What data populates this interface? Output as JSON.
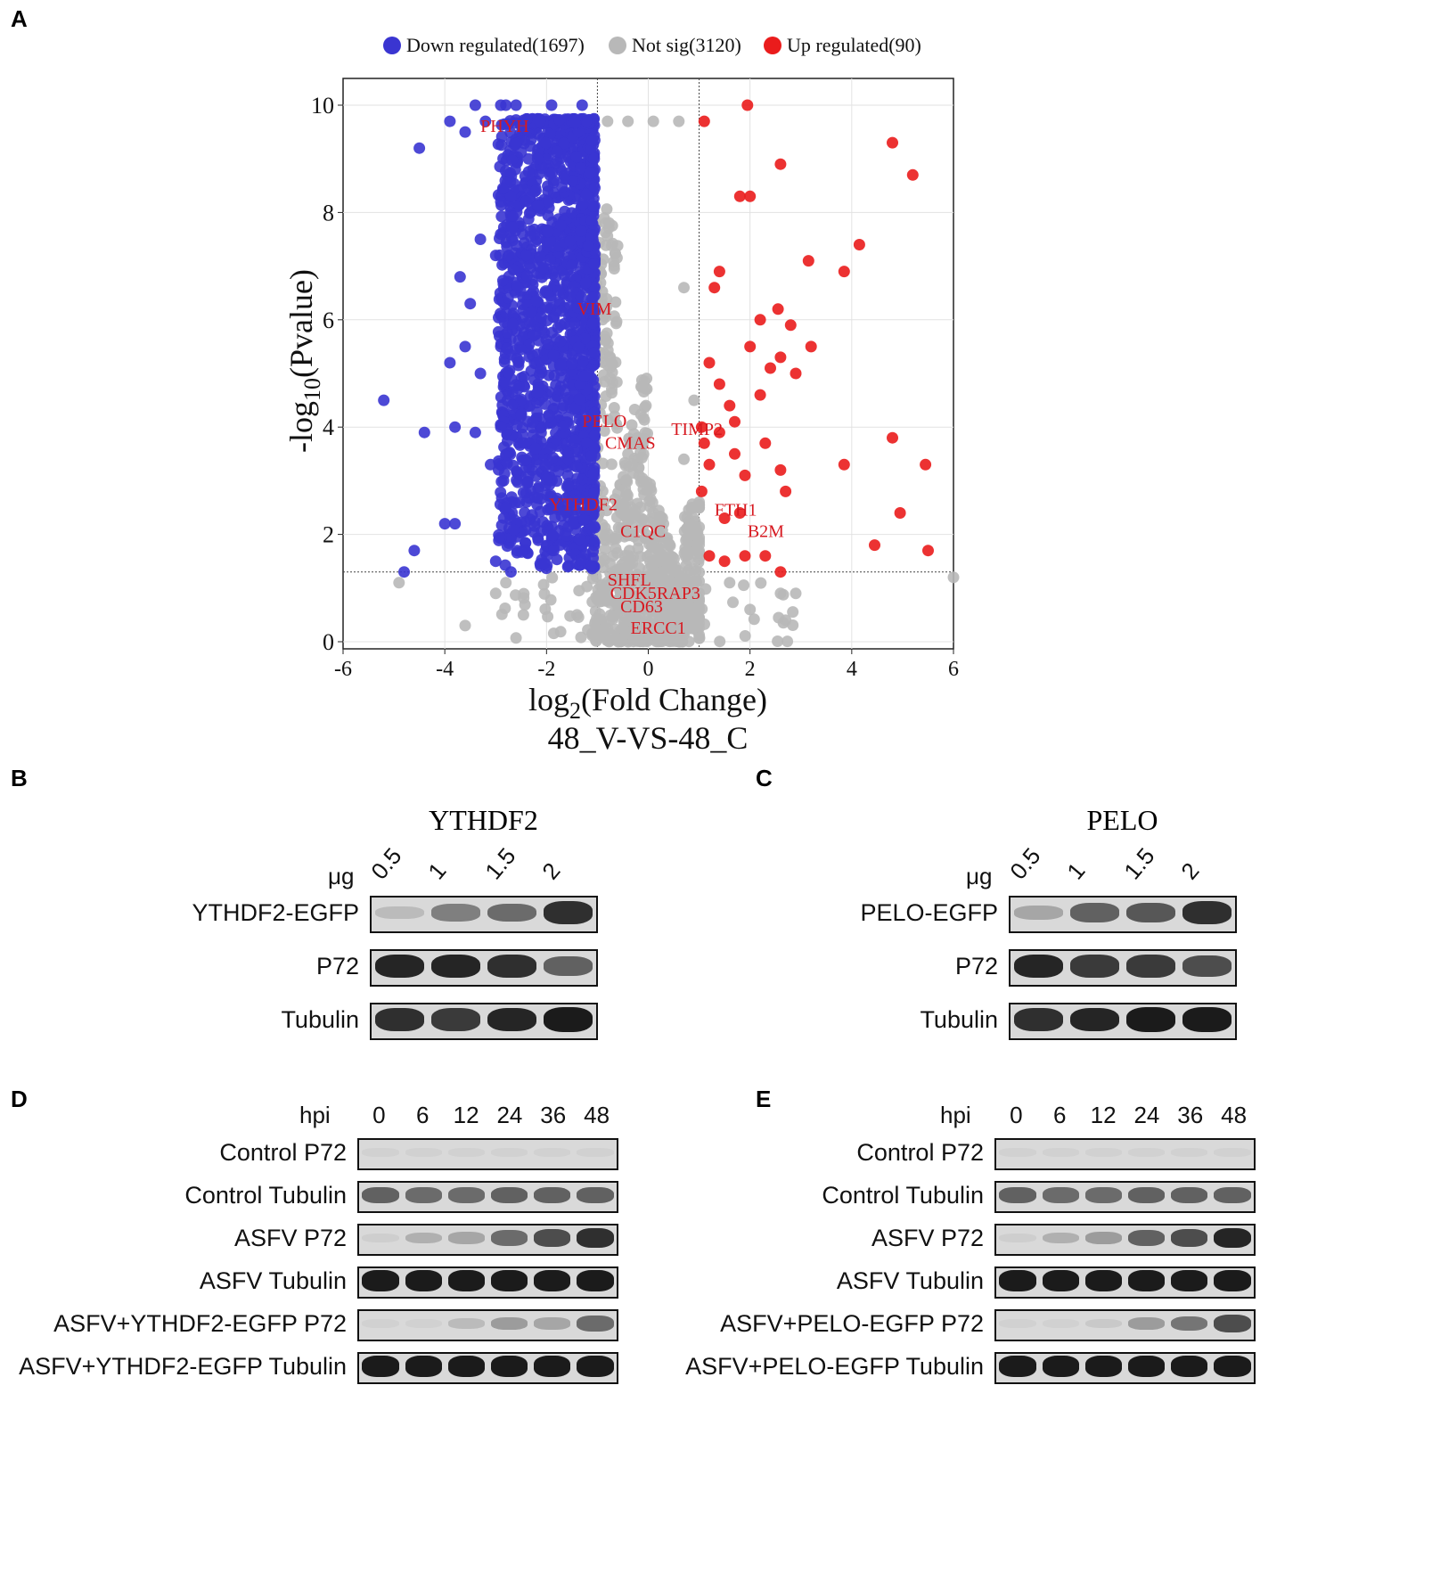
{
  "panel_labels": {
    "a": "A",
    "b": "B",
    "c": "C",
    "d": "D",
    "e": "E"
  },
  "chart_data": {
    "type": "scatter",
    "title": "48_V-VS-48_C",
    "xlabel_prefix": "log",
    "xlabel_sub": "2",
    "xlabel_suffix": "(Fold Change)",
    "ylabel_prefix": "-log",
    "ylabel_sub": "10",
    "ylabel_suffix": "(Pvalue)",
    "xlim": [
      -6,
      6
    ],
    "ylim": [
      0,
      10.5
    ],
    "xticks": [
      "-6",
      "-4",
      "-2",
      "0",
      "2",
      "4",
      "6"
    ],
    "yticks": [
      "0",
      "2",
      "4",
      "6",
      "8",
      "10"
    ],
    "thresholds": {
      "fc": [
        -1,
        1
      ],
      "p": 1.3
    },
    "legend": [
      {
        "label": "Down regulated(1697)",
        "color": "#3a35d1"
      },
      {
        "label": "Not sig(3120)",
        "color": "#b8b8b8"
      },
      {
        "label": "Up regulated(90)",
        "color": "#ea1c1c"
      }
    ],
    "series": [
      {
        "name": "Down regulated",
        "color": "#3a35d1",
        "points": [
          [
            -3.4,
            10
          ],
          [
            -2.9,
            10
          ],
          [
            -2.8,
            10
          ],
          [
            -2.6,
            10
          ],
          [
            -1.9,
            10
          ],
          [
            -1.3,
            10
          ],
          [
            -3.9,
            9.7
          ],
          [
            -3.2,
            9.7
          ],
          [
            -3.6,
            9.5
          ],
          [
            -4.5,
            9.2
          ],
          [
            -5.2,
            4.5
          ],
          [
            -4.4,
            3.9
          ],
          [
            -3.8,
            4.0
          ],
          [
            -3.4,
            3.9
          ],
          [
            -4.0,
            2.2
          ],
          [
            -3.8,
            2.2
          ],
          [
            -4.6,
            1.7
          ],
          [
            -4.8,
            1.3
          ],
          [
            -3.0,
            1.5
          ],
          [
            -2.7,
            1.3
          ],
          [
            -3.5,
            6.3
          ],
          [
            -3.6,
            5.5
          ],
          [
            -3.9,
            5.2
          ],
          [
            -3.3,
            7.5
          ],
          [
            -3.7,
            6.8
          ],
          [
            -3.3,
            5.0
          ],
          [
            -3.0,
            7.2
          ],
          [
            -2.9,
            4.0
          ],
          [
            -3.1,
            3.3
          ],
          [
            -2.8,
            2.5
          ],
          [
            -2.9,
            8.2
          ],
          [
            -2.7,
            8.3
          ]
        ]
      },
      {
        "name": "Up regulated",
        "color": "#ea1c1c",
        "points": [
          [
            1.95,
            10
          ],
          [
            1.1,
            9.7
          ],
          [
            4.8,
            9.3
          ],
          [
            5.2,
            8.7
          ],
          [
            2.6,
            8.9
          ],
          [
            1.8,
            8.3
          ],
          [
            2.0,
            8.3
          ],
          [
            4.15,
            7.4
          ],
          [
            3.15,
            7.1
          ],
          [
            3.85,
            6.9
          ],
          [
            1.4,
            6.9
          ],
          [
            1.3,
            6.6
          ],
          [
            2.55,
            6.2
          ],
          [
            2.2,
            6.0
          ],
          [
            2.8,
            5.9
          ],
          [
            3.2,
            5.5
          ],
          [
            2.0,
            5.5
          ],
          [
            2.6,
            5.3
          ],
          [
            2.4,
            5.1
          ],
          [
            2.9,
            5.0
          ],
          [
            1.2,
            5.2
          ],
          [
            1.4,
            4.8
          ],
          [
            2.2,
            4.6
          ],
          [
            1.6,
            4.4
          ],
          [
            1.05,
            4.0
          ],
          [
            1.7,
            4.1
          ],
          [
            1.4,
            3.9
          ],
          [
            4.8,
            3.8
          ],
          [
            2.3,
            3.7
          ],
          [
            1.1,
            3.7
          ],
          [
            1.7,
            3.5
          ],
          [
            3.85,
            3.3
          ],
          [
            5.45,
            3.3
          ],
          [
            2.6,
            3.2
          ],
          [
            1.2,
            3.3
          ],
          [
            1.9,
            3.1
          ],
          [
            2.7,
            2.8
          ],
          [
            1.05,
            2.8
          ],
          [
            4.95,
            2.4
          ],
          [
            1.5,
            2.3
          ],
          [
            1.8,
            2.4
          ],
          [
            4.45,
            1.8
          ],
          [
            5.5,
            1.7
          ],
          [
            1.2,
            1.6
          ],
          [
            1.5,
            1.5
          ],
          [
            1.9,
            1.6
          ],
          [
            2.3,
            1.6
          ],
          [
            2.6,
            1.3
          ]
        ]
      },
      {
        "name": "Not sig",
        "color": "#b8b8b8",
        "points": [
          [
            -0.8,
            9.7
          ],
          [
            -0.4,
            9.7
          ],
          [
            0.1,
            9.7
          ],
          [
            0.6,
            9.7
          ],
          [
            -1.1,
            9.5
          ],
          [
            0.7,
            6.6
          ],
          [
            -4.9,
            1.1
          ],
          [
            -3.6,
            0.3
          ],
          [
            2.6,
            0.9
          ],
          [
            2.9,
            0.9
          ],
          [
            2.7,
            0.4
          ],
          [
            6.0,
            1.2
          ],
          [
            2.0,
            0.6
          ],
          [
            1.6,
            1.1
          ],
          [
            -2.8,
            1.1
          ],
          [
            -3.0,
            0.9
          ],
          [
            0.9,
            4.5
          ],
          [
            0.7,
            3.4
          ],
          [
            1.0,
            2.6
          ]
        ]
      }
    ],
    "gene_labels": [
      {
        "text": "PHYH",
        "x": -3.3,
        "y": 9.5
      },
      {
        "text": "VIM",
        "x": -1.4,
        "y": 6.1
      },
      {
        "text": "PELO",
        "x": -1.3,
        "y": 4.0
      },
      {
        "text": "CMAS",
        "x": -0.85,
        "y": 3.6
      },
      {
        "text": "TIMP2",
        "x": 0.45,
        "y": 3.85
      },
      {
        "text": "YTHDF2",
        "x": -1.95,
        "y": 2.45
      },
      {
        "text": "FTH1",
        "x": 1.3,
        "y": 2.35
      },
      {
        "text": "C1QC",
        "x": -0.55,
        "y": 1.95
      },
      {
        "text": "B2M",
        "x": 1.95,
        "y": 1.95
      },
      {
        "text": "SHFL",
        "x": -0.8,
        "y": 1.05
      },
      {
        "text": "CDK5RAP3",
        "x": -0.75,
        "y": 0.8
      },
      {
        "text": "CD63",
        "x": -0.55,
        "y": 0.55
      },
      {
        "text": "ERCC1",
        "x": -0.35,
        "y": 0.15
      }
    ]
  },
  "blot_b": {
    "title": "YTHDF2",
    "unit": "μg",
    "lanes": [
      "0.5",
      "1",
      "1.5",
      "2"
    ],
    "rows": [
      {
        "label": "YTHDF2-EGFP",
        "intensities": [
          0.15,
          0.45,
          0.55,
          0.85
        ]
      },
      {
        "label": "P72",
        "intensities": [
          0.9,
          0.9,
          0.85,
          0.6
        ]
      },
      {
        "label": "Tubulin",
        "intensities": [
          0.85,
          0.8,
          0.9,
          0.95
        ]
      }
    ]
  },
  "blot_c": {
    "title": "PELO",
    "unit": "μg",
    "lanes": [
      "0.5",
      "1",
      "1.5",
      "2"
    ],
    "rows": [
      {
        "label": "PELO-EGFP",
        "intensities": [
          0.25,
          0.6,
          0.65,
          0.85
        ]
      },
      {
        "label": "P72",
        "intensities": [
          0.9,
          0.8,
          0.8,
          0.7
        ]
      },
      {
        "label": "Tubulin",
        "intensities": [
          0.85,
          0.9,
          0.95,
          0.95
        ]
      }
    ]
  },
  "blot_d": {
    "unit": "hpi",
    "lanes": [
      "0",
      "6",
      "12",
      "24",
      "36",
      "48"
    ],
    "rows": [
      {
        "label": "Control P72",
        "intensities": [
          0,
          0,
          0,
          0,
          0,
          0
        ]
      },
      {
        "label": "Control Tubulin",
        "intensities": [
          0.6,
          0.55,
          0.55,
          0.6,
          0.6,
          0.6
        ]
      },
      {
        "label": "ASFV P72",
        "intensities": [
          0.05,
          0.2,
          0.25,
          0.55,
          0.7,
          0.85
        ]
      },
      {
        "label": "ASFV Tubulin",
        "intensities": [
          0.95,
          0.95,
          0.95,
          0.95,
          0.95,
          0.95
        ]
      },
      {
        "label": "ASFV+YTHDF2-EGFP P72",
        "intensities": [
          0.02,
          0.03,
          0.15,
          0.3,
          0.25,
          0.55
        ]
      },
      {
        "label": "ASFV+YTHDF2-EGFP Tubulin",
        "intensities": [
          0.95,
          0.95,
          0.95,
          0.95,
          0.95,
          0.95
        ]
      }
    ]
  },
  "blot_e": {
    "unit": "hpi",
    "lanes": [
      "0",
      "6",
      "12",
      "24",
      "36",
      "48"
    ],
    "rows": [
      {
        "label": "Control P72",
        "intensities": [
          0,
          0,
          0,
          0,
          0,
          0
        ]
      },
      {
        "label": "Control Tubulin",
        "intensities": [
          0.6,
          0.55,
          0.55,
          0.6,
          0.6,
          0.6
        ]
      },
      {
        "label": "ASFV P72",
        "intensities": [
          0.05,
          0.2,
          0.3,
          0.6,
          0.7,
          0.9
        ]
      },
      {
        "label": "ASFV Tubulin",
        "intensities": [
          0.95,
          0.95,
          0.95,
          0.95,
          0.95,
          0.95
        ]
      },
      {
        "label": "ASFV+PELO-EGFP P72",
        "intensities": [
          0.02,
          0.03,
          0.08,
          0.3,
          0.5,
          0.7
        ]
      },
      {
        "label": "ASFV+PELO-EGFP Tubulin",
        "intensities": [
          0.95,
          0.95,
          0.95,
          0.95,
          0.95,
          0.95
        ]
      }
    ]
  }
}
